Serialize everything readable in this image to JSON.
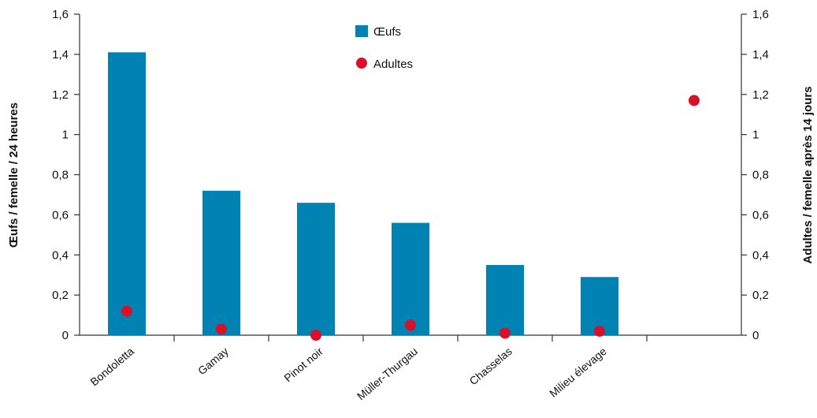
{
  "chart_data": {
    "type": "bar",
    "categories": [
      "Bondoletta",
      "Gamay",
      "Pinot noir",
      "Müller-Thurgau",
      "Chasselas",
      "Milieu élevage",
      ""
    ],
    "series": [
      {
        "name": "Œufs",
        "type": "bar",
        "axis": "left",
        "color": "#0083b3",
        "values": [
          1.41,
          0.72,
          0.66,
          0.56,
          0.35,
          0.29,
          null
        ]
      },
      {
        "name": "Adultes",
        "type": "scatter",
        "axis": "right",
        "color": "#d8102a",
        "values": [
          0.12,
          0.03,
          0.0,
          0.05,
          0.01,
          0.02,
          1.17
        ]
      }
    ],
    "ylabel": "Œufs / femelle / 24 heures",
    "y2label": "Adultes / femelle après 14 jours",
    "ylim": [
      0,
      1.6
    ],
    "y2lim": [
      0,
      1.6
    ],
    "yticks": [
      "0",
      "0,2",
      "0,4",
      "0,6",
      "0,8",
      "1",
      "1,2",
      "1,4",
      "1,6"
    ],
    "y2ticks": [
      "0",
      "0,2",
      "0,4",
      "0,6",
      "0,8",
      "1",
      "1,2",
      "1,4",
      "1,6"
    ],
    "legend_position": "top-center",
    "grid": false
  }
}
